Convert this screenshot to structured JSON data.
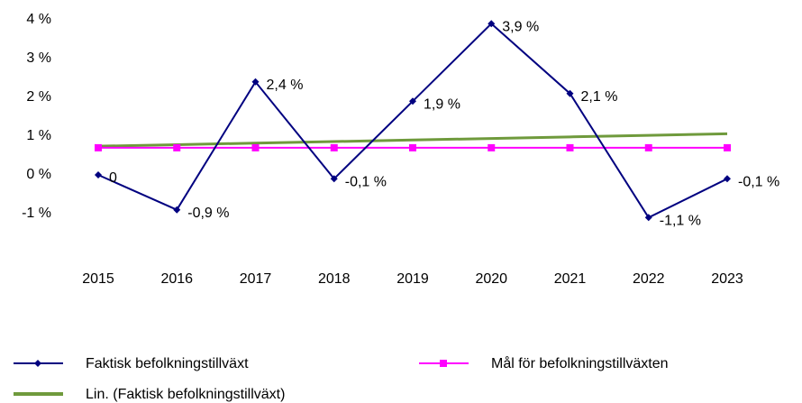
{
  "chart_data": {
    "type": "line",
    "categories": [
      "2015",
      "2016",
      "2017",
      "2018",
      "2019",
      "2020",
      "2021",
      "2022",
      "2023"
    ],
    "ylim": [
      -1,
      4
    ],
    "yticks": [
      {
        "value": 4,
        "label": "4 %"
      },
      {
        "value": 3,
        "label": "3 %"
      },
      {
        "value": 2,
        "label": "2 %"
      },
      {
        "value": 1,
        "label": "1 %"
      },
      {
        "value": 0,
        "label": "0 %"
      },
      {
        "value": -1,
        "label": "-1 %"
      }
    ],
    "grid": false,
    "legend": "bottom",
    "series": [
      {
        "name": "Faktisk befolkningstillväxt",
        "color": "#000080",
        "marker": "diamond",
        "values": [
          0,
          -0.9,
          2.4,
          -0.1,
          1.9,
          3.9,
          2.1,
          -1.1,
          -0.1
        ],
        "value_labels": [
          "0",
          "-0,9 %",
          "2,4 %",
          "-0,1 %",
          "1,9 %",
          "3,9 %",
          "2,1 %",
          "-1,1 %",
          "-0,1 %"
        ]
      },
      {
        "name": "Mål för befolkningstillväxten",
        "color": "#ff00ff",
        "marker": "square",
        "values": [
          0.7,
          0.7,
          0.7,
          0.7,
          0.7,
          0.7,
          0.7,
          0.7,
          0.7
        ]
      },
      {
        "name": "Lin. (Faktisk befolkningstillväxt)",
        "color": "#6f9a3c",
        "marker": "none",
        "values": [
          0.74,
          0.78,
          0.82,
          0.86,
          0.9,
          0.94,
          0.98,
          1.02,
          1.06
        ]
      }
    ]
  }
}
